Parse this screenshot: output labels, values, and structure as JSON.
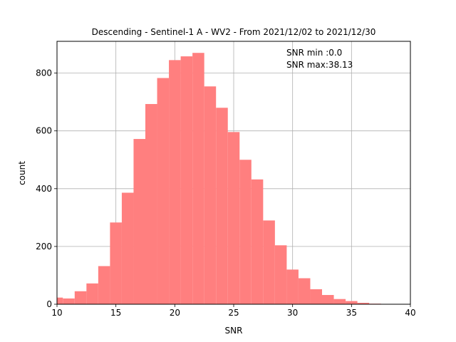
{
  "chart_data": {
    "type": "bar",
    "title": "Descending - Sentinel-1 A - WV2 - From 2021/12/02 to 2021/12/30",
    "xlabel": "SNR",
    "ylabel": "count",
    "xlim": [
      10,
      40
    ],
    "ylim": [
      0,
      910
    ],
    "xticks": [
      "10",
      "15",
      "20",
      "25",
      "30",
      "35",
      "40"
    ],
    "yticks": [
      "0",
      "200",
      "400",
      "600",
      "800"
    ],
    "grid": true,
    "bar_color": "#ff7f7f",
    "annotations": [
      "SNR min :0.0",
      "SNR max:38.13"
    ],
    "bins": [
      {
        "x0": 9.5,
        "x1": 10.5,
        "count": 23
      },
      {
        "x0": 10.5,
        "x1": 11.5,
        "count": 20
      },
      {
        "x0": 11.5,
        "x1": 12.5,
        "count": 45
      },
      {
        "x0": 12.5,
        "x1": 13.5,
        "count": 72
      },
      {
        "x0": 13.5,
        "x1": 14.5,
        "count": 132
      },
      {
        "x0": 14.5,
        "x1": 15.5,
        "count": 283
      },
      {
        "x0": 15.5,
        "x1": 16.5,
        "count": 386
      },
      {
        "x0": 16.5,
        "x1": 17.5,
        "count": 572
      },
      {
        "x0": 17.5,
        "x1": 18.5,
        "count": 693
      },
      {
        "x0": 18.5,
        "x1": 19.5,
        "count": 783
      },
      {
        "x0": 19.5,
        "x1": 20.5,
        "count": 845
      },
      {
        "x0": 20.5,
        "x1": 21.5,
        "count": 858
      },
      {
        "x0": 21.5,
        "x1": 22.5,
        "count": 870
      },
      {
        "x0": 22.5,
        "x1": 23.5,
        "count": 754
      },
      {
        "x0": 23.5,
        "x1": 24.5,
        "count": 680
      },
      {
        "x0": 24.5,
        "x1": 25.5,
        "count": 596
      },
      {
        "x0": 25.5,
        "x1": 26.5,
        "count": 500
      },
      {
        "x0": 26.5,
        "x1": 27.5,
        "count": 432
      },
      {
        "x0": 27.5,
        "x1": 28.5,
        "count": 290
      },
      {
        "x0": 28.5,
        "x1": 29.5,
        "count": 204
      },
      {
        "x0": 29.5,
        "x1": 30.5,
        "count": 120
      },
      {
        "x0": 30.5,
        "x1": 31.5,
        "count": 90
      },
      {
        "x0": 31.5,
        "x1": 32.5,
        "count": 52
      },
      {
        "x0": 32.5,
        "x1": 33.5,
        "count": 32
      },
      {
        "x0": 33.5,
        "x1": 34.5,
        "count": 18
      },
      {
        "x0": 34.5,
        "x1": 35.5,
        "count": 11
      },
      {
        "x0": 35.5,
        "x1": 36.5,
        "count": 5
      },
      {
        "x0": 36.5,
        "x1": 37.5,
        "count": 2
      },
      {
        "x0": 37.5,
        "x1": 38.5,
        "count": 1
      }
    ]
  }
}
